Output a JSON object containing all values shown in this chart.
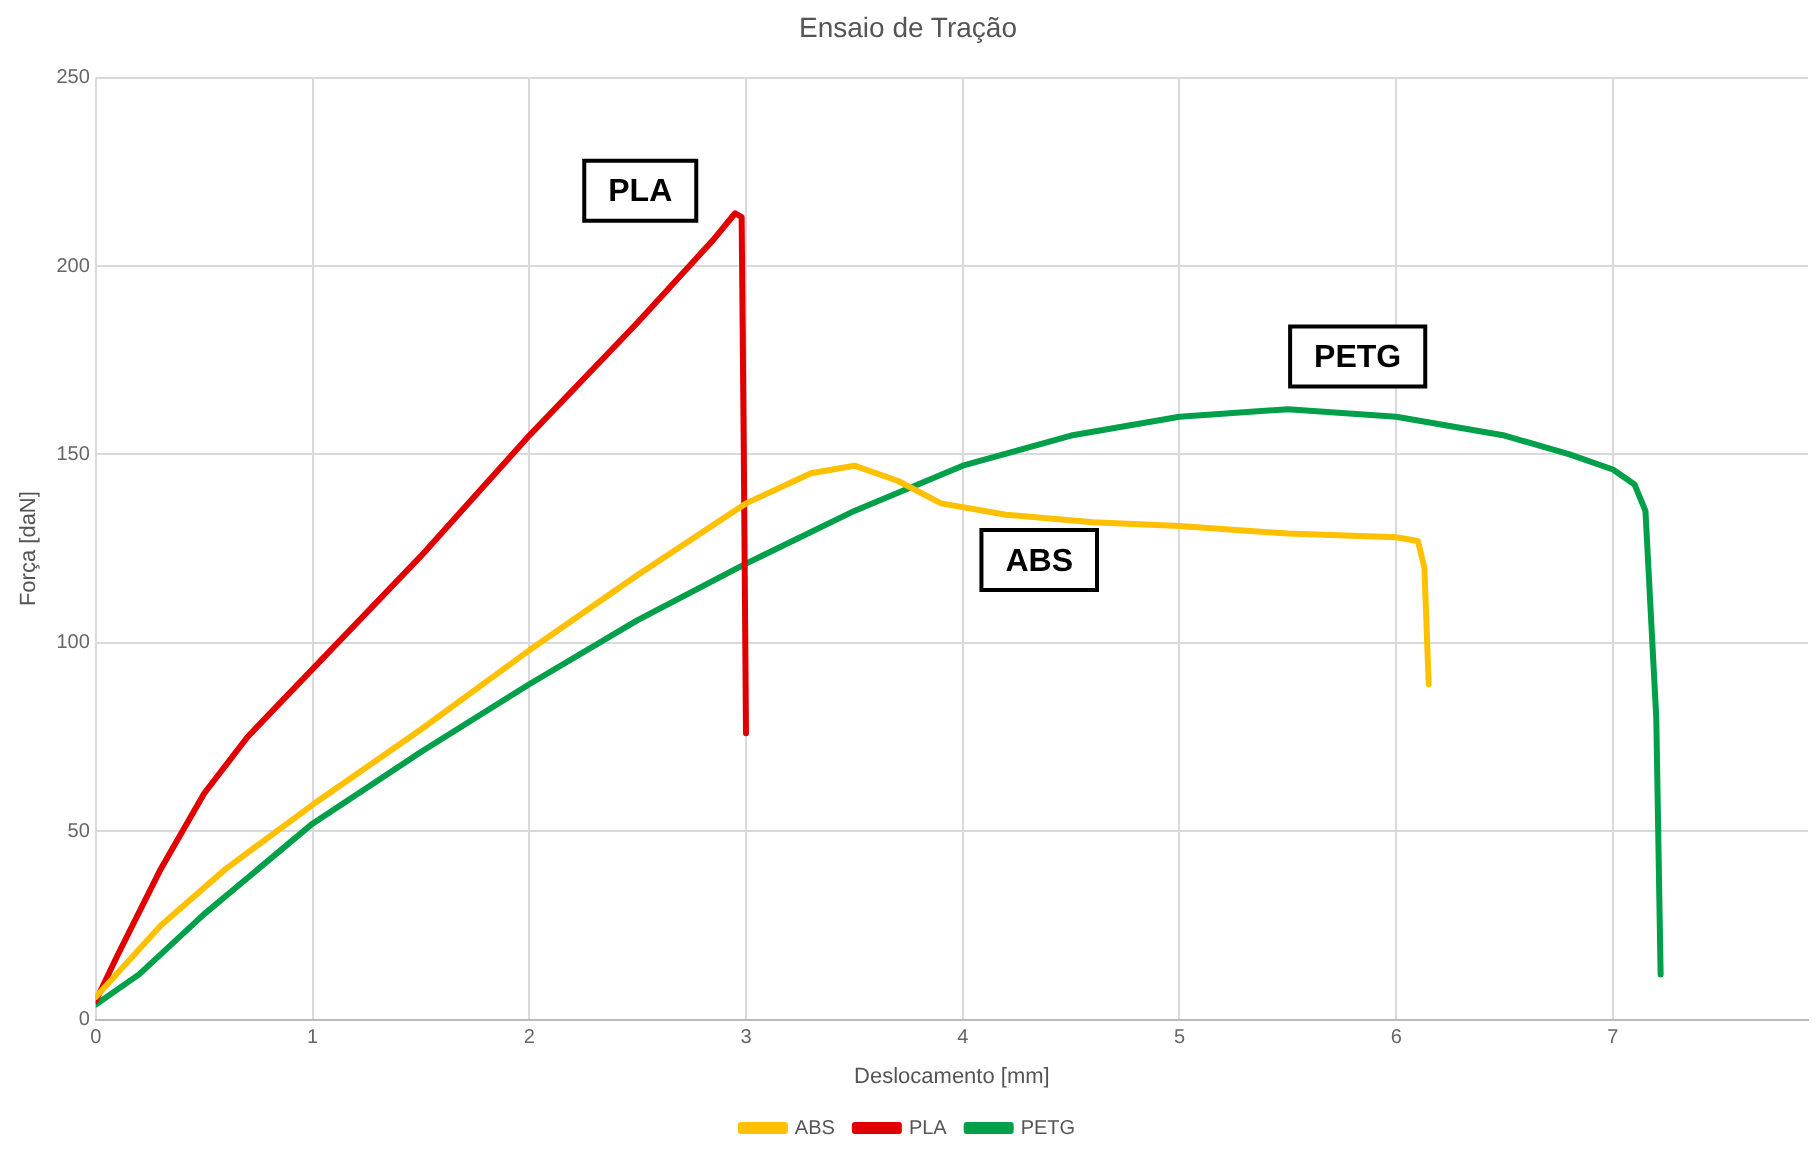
{
  "chart_data": {
    "type": "line",
    "title": "Ensaio de Tração",
    "xlabel": "Deslocamento [mm]",
    "ylabel": "Força [daN]",
    "xlim": [
      0,
      7.9
    ],
    "xticks": [
      0,
      1,
      2,
      3,
      4,
      5,
      6,
      7
    ],
    "ylim": [
      0,
      250
    ],
    "yticks": [
      0,
      50,
      100,
      150,
      200,
      250
    ],
    "grid": true,
    "legend": "bottom",
    "marker": "none",
    "line_style": "solid",
    "series": [
      {
        "name": "ABS",
        "color": "#ffc000",
        "x": [
          0,
          0.3,
          0.6,
          1,
          1.5,
          2,
          2.5,
          3,
          3.3,
          3.5,
          3.7,
          3.9,
          4.2,
          4.6,
          5,
          5.5,
          6,
          6.1,
          6.13,
          6.15
        ],
        "values": [
          6,
          25,
          40,
          57,
          77,
          98,
          118,
          137,
          145,
          147,
          143,
          137,
          134,
          132,
          131,
          129,
          128,
          127,
          120,
          89
        ]
      },
      {
        "name": "PLA",
        "color": "#e00000",
        "x": [
          0,
          0.1,
          0.3,
          0.5,
          0.7,
          1,
          1.5,
          2,
          2.5,
          2.85,
          2.95,
          2.98,
          2.99,
          3.0
        ],
        "values": [
          5,
          17,
          40,
          60,
          75,
          93,
          123,
          155,
          185,
          207,
          214,
          213,
          150,
          76
        ]
      },
      {
        "name": "PETG",
        "color": "#00a04a",
        "x": [
          0,
          0.2,
          0.5,
          1,
          1.5,
          2,
          2.5,
          3,
          3.5,
          4,
          4.5,
          5,
          5.5,
          6,
          6.5,
          6.8,
          7,
          7.1,
          7.15,
          7.2,
          7.22
        ],
        "values": [
          4,
          12,
          28,
          52,
          71,
          89,
          106,
          121,
          135,
          147,
          155,
          160,
          162,
          160,
          155,
          150,
          146,
          142,
          135,
          80,
          12
        ]
      }
    ],
    "annotations": [
      "PLA",
      "PETG",
      "ABS"
    ]
  }
}
